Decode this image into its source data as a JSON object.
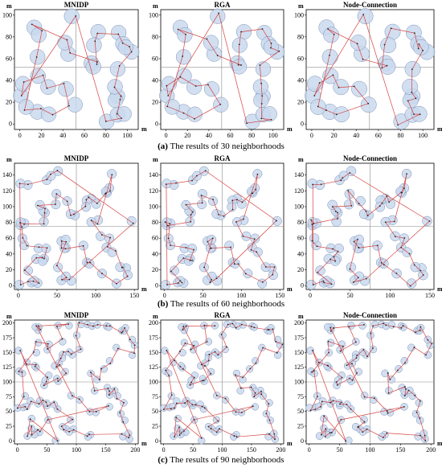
{
  "chart_data": [
    {
      "type": "scatter",
      "title": "MNIDP",
      "group": 0,
      "n": 30,
      "xlim": [
        -5,
        110
      ],
      "ylim": [
        -5,
        105
      ],
      "ticks": [
        0,
        20,
        40,
        60,
        80,
        100
      ],
      "unit": "m",
      "divider": [
        52,
        52
      ]
    },
    {
      "type": "scatter",
      "title": "RGA",
      "group": 0,
      "n": 30,
      "xlim": [
        -5,
        110
      ],
      "ylim": [
        -5,
        105
      ],
      "ticks": [
        0,
        20,
        40,
        60,
        80,
        100
      ],
      "unit": "m",
      "divider": [
        52,
        52
      ]
    },
    {
      "type": "scatter",
      "title": "Node-Connection",
      "group": 0,
      "n": 30,
      "xlim": [
        -5,
        110
      ],
      "ylim": [
        -5,
        105
      ],
      "ticks": [
        0,
        20,
        40,
        60,
        80,
        100
      ],
      "unit": "m",
      "divider": [
        52,
        52
      ]
    },
    {
      "type": "scatter",
      "title": "MNIDP",
      "group": 1,
      "n": 60,
      "xlim": [
        -5,
        155
      ],
      "ylim": [
        -5,
        155
      ],
      "ticks": [
        0,
        50,
        100,
        150
      ],
      "yticks": [
        0,
        20,
        40,
        60,
        80,
        100,
        120,
        140
      ],
      "unit": "m",
      "divider": [
        75,
        75
      ]
    },
    {
      "type": "scatter",
      "title": "RGA",
      "group": 1,
      "n": 60,
      "xlim": [
        -5,
        155
      ],
      "ylim": [
        -5,
        155
      ],
      "ticks": [
        0,
        50,
        100,
        150
      ],
      "yticks": [
        0,
        20,
        40,
        60,
        80,
        100,
        120,
        140
      ],
      "unit": "m",
      "divider": [
        75,
        75
      ]
    },
    {
      "type": "scatter",
      "title": "Node-Connection",
      "group": 1,
      "n": 60,
      "xlim": [
        -5,
        155
      ],
      "ylim": [
        -5,
        155
      ],
      "ticks": [
        0,
        50,
        100,
        150
      ],
      "yticks": [
        0,
        20,
        40,
        60,
        80,
        100,
        120,
        140
      ],
      "unit": "m",
      "divider": [
        75,
        75
      ]
    },
    {
      "type": "scatter",
      "title": "MNIDP",
      "group": 2,
      "n": 90,
      "xlim": [
        -5,
        205
      ],
      "ylim": [
        -5,
        205
      ],
      "ticks": [
        0,
        50,
        100,
        150,
        200
      ],
      "yticks": [
        0,
        25,
        50,
        75,
        100,
        125,
        150,
        175,
        200
      ],
      "unit": "m",
      "divider": [
        100,
        100
      ]
    },
    {
      "type": "scatter",
      "title": "RGA",
      "group": 2,
      "n": 90,
      "xlim": [
        -5,
        205
      ],
      "ylim": [
        -5,
        205
      ],
      "ticks": [
        0,
        50,
        100,
        150,
        200
      ],
      "yticks": [
        0,
        25,
        50,
        75,
        100,
        125,
        150,
        175,
        200
      ],
      "unit": "m",
      "divider": [
        100,
        100
      ]
    },
    {
      "type": "scatter",
      "title": "Node-Connection",
      "group": 2,
      "n": 90,
      "xlim": [
        -5,
        205
      ],
      "ylim": [
        -5,
        205
      ],
      "ticks": [
        0,
        50,
        100,
        150,
        200
      ],
      "yticks": [
        0,
        25,
        50,
        75,
        100,
        125,
        150,
        175,
        200
      ],
      "unit": "m",
      "divider": [
        100,
        100
      ]
    }
  ],
  "axis_unit_label": "m",
  "captions": [
    {
      "tag": "(a)",
      "text": " The results of 30 neighborhoods"
    },
    {
      "tag": "(b)",
      "text": " The results of 60 neighborhoods"
    },
    {
      "tag": "(c)",
      "text": " The results of 90 neighborhoods"
    }
  ],
  "colors": {
    "circle_fill": "#c9d9ef",
    "circle_stroke": "#7f8fb4",
    "path": "#d4433f",
    "divider": "#8a8a8a",
    "frame": "#000000"
  }
}
